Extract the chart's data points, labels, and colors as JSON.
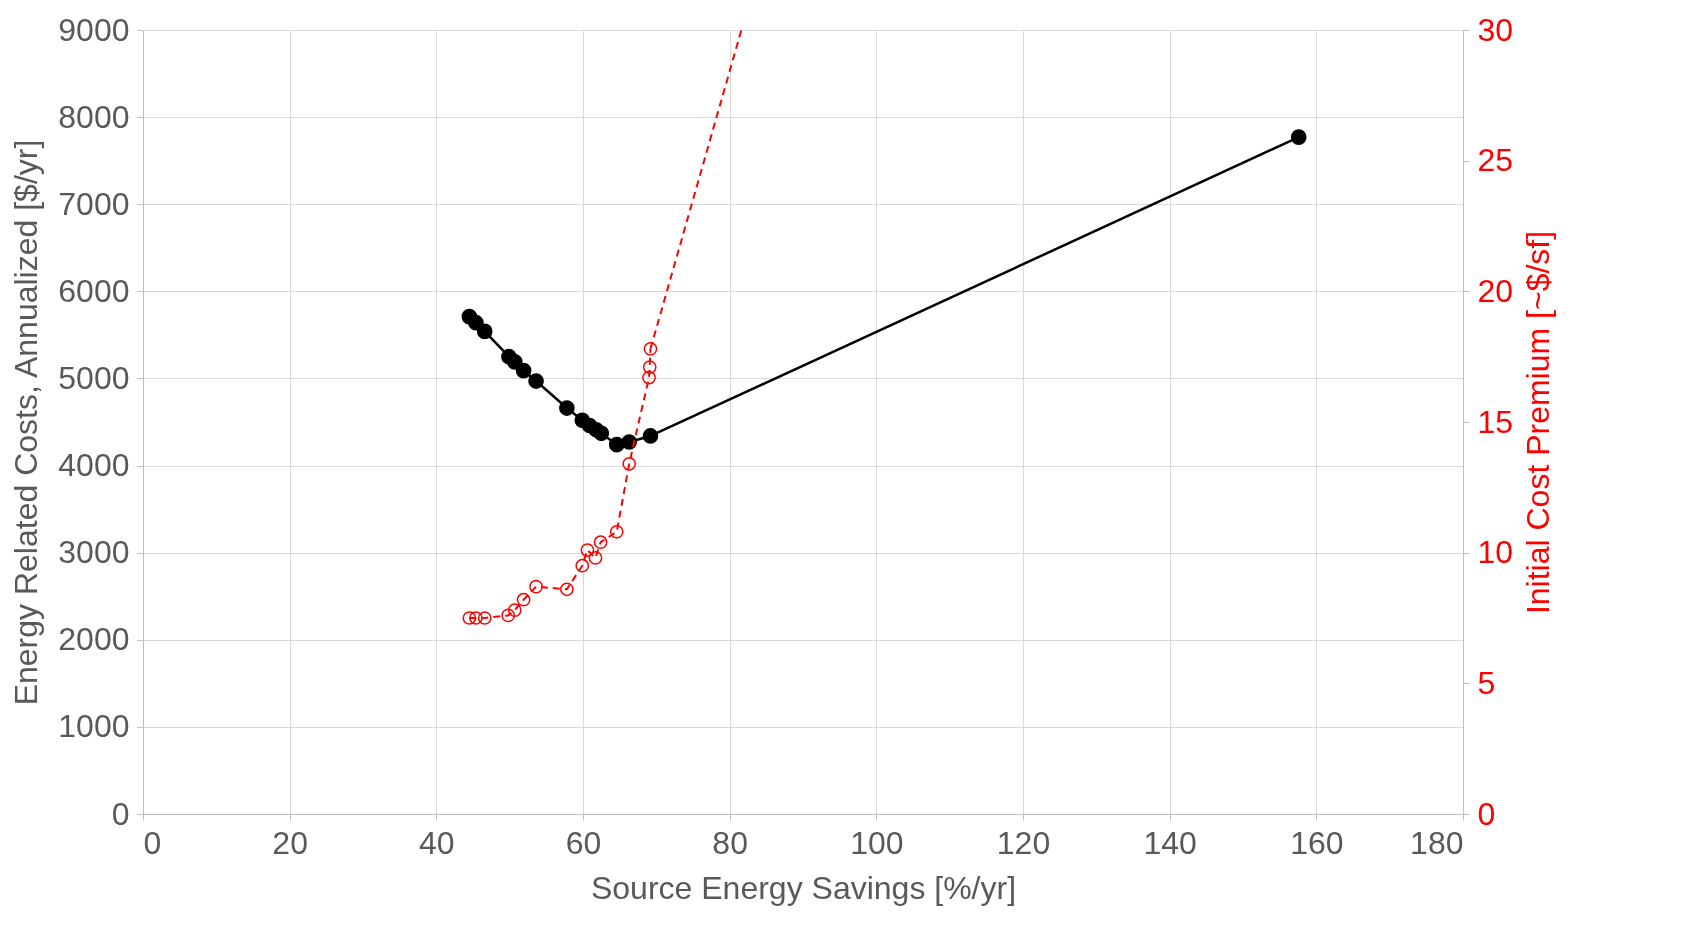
{
  "chart_data": {
    "type": "line",
    "xlabel": "Source Energy Savings [%/yr]",
    "ylabel": "Energy Related Costs, Annualized [$/yr]",
    "y2label": "Initial Cost Premium [~$/sf]",
    "xlim": [
      0,
      180
    ],
    "xticks": [
      0,
      20,
      40,
      60,
      80,
      100,
      120,
      140,
      160,
      180
    ],
    "ylim": [
      0,
      9000
    ],
    "yticks": [
      0,
      1000,
      2000,
      3000,
      4000,
      5000,
      6000,
      7000,
      8000,
      9000
    ],
    "y2lim": [
      0,
      30
    ],
    "y2ticks": [
      0,
      5,
      10,
      15,
      20,
      25,
      30
    ],
    "grid": true,
    "series": [
      {
        "color": "#000000",
        "marker": "circle",
        "line_style": "solid",
        "x": [
          44.5,
          45.4,
          46.6,
          49.9,
          50.7,
          51.9,
          53.6,
          57.8,
          59.9,
          60.9,
          61.8,
          62.5,
          64.6,
          66.3,
          69.2,
          157.6
        ],
        "values": [
          5710,
          5640,
          5540,
          5250,
          5190,
          5090,
          4970,
          4660,
          4520,
          4460,
          4410,
          4370,
          4240,
          4270,
          4340,
          7770
        ]
      },
      {
        "color": "#ff0000",
        "axis": "y2",
        "marker": "circle",
        "line_style": "dashed",
        "x": [
          44.5,
          45.4,
          46.6,
          49.8,
          50.7,
          51.9,
          53.6,
          57.8,
          59.9,
          60.6,
          61.7,
          62.4,
          64.6,
          66.3,
          69.0,
          69.1,
          69.2
        ],
        "values": [
          7.5,
          7.5,
          7.5,
          7.6,
          7.8,
          8.2,
          8.7,
          8.6,
          9.5,
          10.1,
          9.8,
          10.4,
          10.8,
          13.4,
          16.7,
          17.1,
          17.8
        ]
      },
      {
        "color": "#ff0000",
        "axis": "y2",
        "marker": "none",
        "line_style": "dashed",
        "x": [
          69.2,
          81.6
        ],
        "values": [
          17.8,
          30
        ]
      }
    ]
  }
}
